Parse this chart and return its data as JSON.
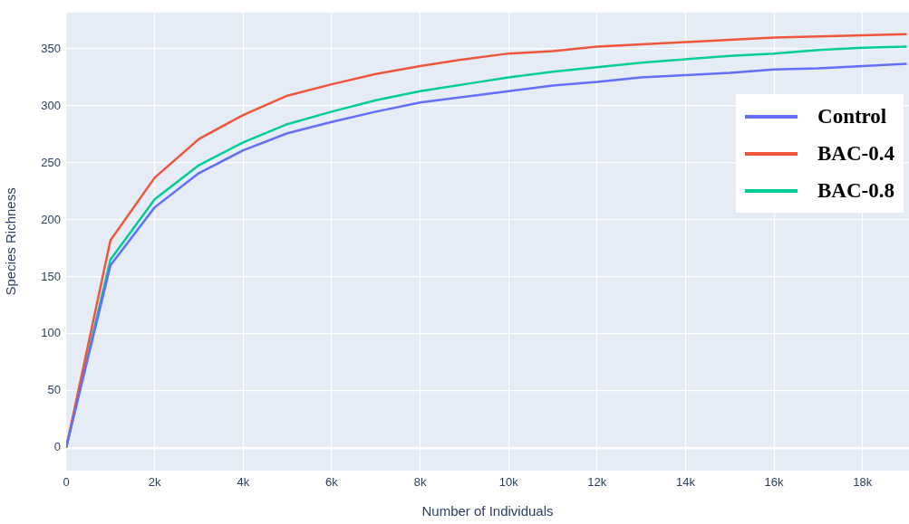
{
  "chart_data": {
    "type": "line",
    "xlabel": "Number of Individuals",
    "ylabel": "Species Richness",
    "x": [
      0,
      1000,
      2000,
      3000,
      4000,
      5000,
      6000,
      7000,
      8000,
      9000,
      10000,
      11000,
      12000,
      13000,
      14000,
      15000,
      16000,
      17000,
      18000,
      19000
    ],
    "series": [
      {
        "name": "Control",
        "color": "#636efa",
        "values": [
          0,
          160,
          211,
          241,
          261,
          276,
          286,
          295,
          303,
          308,
          313,
          318,
          321,
          325,
          327,
          329,
          332,
          333,
          335,
          337
        ]
      },
      {
        "name": "BAC-0.4",
        "color": "#ef553b",
        "values": [
          0,
          182,
          237,
          271,
          292,
          309,
          319,
          328,
          335,
          341,
          346,
          348,
          352,
          354,
          356,
          358,
          360,
          361,
          362,
          363
        ]
      },
      {
        "name": "BAC-0.8",
        "color": "#00cc96",
        "values": [
          0,
          165,
          218,
          248,
          268,
          284,
          295,
          305,
          313,
          319,
          325,
          330,
          334,
          338,
          341,
          344,
          346,
          349,
          351,
          352
        ]
      }
    ],
    "xlim": [
      0,
      19050
    ],
    "ylim": [
      -20,
      382
    ],
    "xticks": [
      0,
      {
        "value": 2000,
        "label": "2k"
      },
      {
        "value": 4000,
        "label": "4k"
      },
      {
        "value": 6000,
        "label": "6k"
      },
      {
        "value": 8000,
        "label": "8k"
      },
      {
        "value": 10000,
        "label": "10k"
      },
      {
        "value": 12000,
        "label": "12k"
      },
      {
        "value": 14000,
        "label": "14k"
      },
      {
        "value": 16000,
        "label": "16k"
      },
      {
        "value": 18000,
        "label": "18k"
      }
    ],
    "yticks": [
      0,
      50,
      100,
      150,
      200,
      250,
      300,
      350
    ],
    "grid": true,
    "legend": "right",
    "marker": "none",
    "line_style": "solid"
  }
}
